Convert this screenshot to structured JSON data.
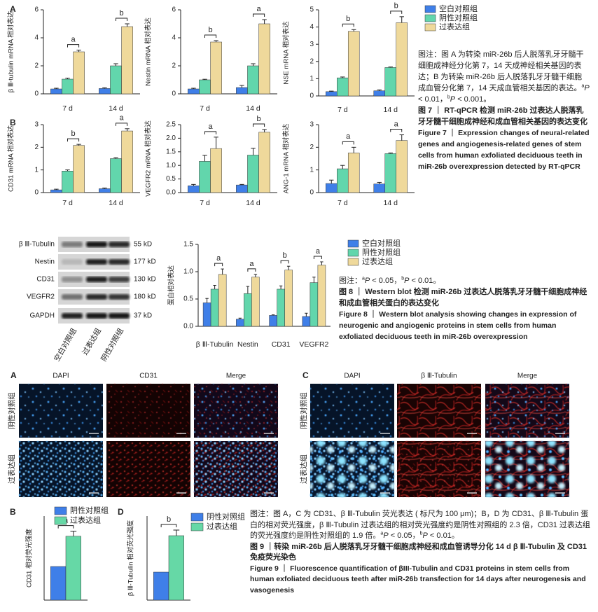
{
  "chart_data": [
    {
      "type": "bar",
      "ylabel": "β Ⅲ-tubulin mRNA 相对表达",
      "categories": [
        "7 d",
        "14 d"
      ],
      "series": [
        {
          "name": "空白对照组",
          "color": "#3f7fe8",
          "values": [
            0.35,
            0.38
          ],
          "errors": [
            0.05,
            0.05
          ]
        },
        {
          "name": "阴性对照组",
          "color": "#62d6ac",
          "values": [
            1.05,
            2.0
          ],
          "errors": [
            0.07,
            0.15
          ]
        },
        {
          "name": "过表达组",
          "color": "#efd99b",
          "values": [
            3.0,
            4.8
          ],
          "errors": [
            0.12,
            0.2
          ]
        }
      ],
      "ylim": [
        0,
        6
      ],
      "yticks": [
        0,
        2,
        4,
        6
      ],
      "annotations": [
        "a",
        "b"
      ]
    },
    {
      "type": "bar",
      "ylabel": "Nestin mRNA 相对表达",
      "categories": [
        "7 d",
        "14 d"
      ],
      "series": [
        {
          "color": "#3f7fe8",
          "values": [
            0.35,
            0.45
          ],
          "errors": [
            0.05,
            0.15
          ]
        },
        {
          "color": "#62d6ac",
          "values": [
            1.0,
            2.0
          ],
          "errors": [
            0.04,
            0.15
          ]
        },
        {
          "color": "#efd99b",
          "values": [
            3.7,
            5.0
          ],
          "errors": [
            0.1,
            0.3
          ]
        }
      ],
      "ylim": [
        0,
        6
      ],
      "yticks": [
        0,
        2,
        4,
        6
      ],
      "annotations": [
        "b",
        "a"
      ]
    },
    {
      "type": "bar",
      "ylabel": "NSE mRNA 相对表达",
      "categories": [
        "7 d",
        "14 d"
      ],
      "series": [
        {
          "color": "#3f7fe8",
          "values": [
            0.25,
            0.3
          ],
          "errors": [
            0.03,
            0.05
          ]
        },
        {
          "color": "#62d6ac",
          "values": [
            1.05,
            1.65
          ],
          "errors": [
            0.05,
            0.03
          ]
        },
        {
          "color": "#efd99b",
          "values": [
            3.75,
            4.25
          ],
          "errors": [
            0.1,
            0.35
          ]
        }
      ],
      "ylim": [
        0,
        5
      ],
      "yticks": [
        0,
        1,
        2,
        3,
        4,
        5
      ],
      "annotations": [
        "b",
        "b"
      ]
    },
    {
      "type": "bar",
      "ylabel": "CD31 mRNA 相对表达",
      "categories": [
        "7 d",
        "14 d"
      ],
      "series": [
        {
          "color": "#3f7fe8",
          "values": [
            0.12,
            0.17
          ],
          "errors": [
            0.03,
            0.03
          ]
        },
        {
          "color": "#62d6ac",
          "values": [
            0.95,
            1.5
          ],
          "errors": [
            0.05,
            0.04
          ]
        },
        {
          "color": "#efd99b",
          "values": [
            2.08,
            2.72
          ],
          "errors": [
            0.05,
            0.1
          ]
        }
      ],
      "ylim": [
        0,
        3
      ],
      "yticks": [
        0,
        1,
        2,
        3
      ],
      "annotations": [
        "b",
        "a"
      ]
    },
    {
      "type": "bar",
      "ylabel": "VEGFR2 mRNA 相对表达",
      "categories": [
        "7 d",
        "14 d"
      ],
      "series": [
        {
          "color": "#3f7fe8",
          "values": [
            0.25,
            0.28
          ],
          "errors": [
            0.05,
            0.02
          ]
        },
        {
          "color": "#62d6ac",
          "values": [
            1.15,
            1.38
          ],
          "errors": [
            0.22,
            0.25
          ]
        },
        {
          "color": "#efd99b",
          "values": [
            1.62,
            2.22
          ],
          "errors": [
            0.42,
            0.1
          ]
        }
      ],
      "ylim": [
        0,
        2.5
      ],
      "yticks": [
        {
          "value": 0,
          "label": "0.0"
        },
        0.5,
        {
          "value": 1,
          "label": "1.0"
        },
        1.5,
        {
          "value": 2,
          "label": "2.0"
        },
        2.5
      ],
      "annotations": [
        "a",
        "b"
      ]
    },
    {
      "type": "bar",
      "ylabel": "ANG-1 mRNA 相对表达",
      "categories": [
        "7 d",
        "14 d"
      ],
      "series": [
        {
          "color": "#3f7fe8",
          "values": [
            0.4,
            0.38
          ],
          "errors": [
            0.15,
            0.07
          ]
        },
        {
          "color": "#62d6ac",
          "values": [
            1.05,
            1.72
          ],
          "errors": [
            0.15,
            0.03
          ]
        },
        {
          "color": "#efd99b",
          "values": [
            1.75,
            2.3
          ],
          "errors": [
            0.25,
            0.25
          ]
        }
      ],
      "ylim": [
        0,
        3
      ],
      "yticks": [
        0,
        1,
        2,
        3
      ],
      "annotations": [
        "a",
        "a"
      ]
    },
    {
      "type": "bar",
      "ylabel": "蛋白相对表达",
      "categories": [
        "β Ⅲ-Tubulin",
        "Nestin",
        "CD31",
        "VEGFR2"
      ],
      "series": [
        {
          "name": "空白对照组",
          "color": "#3f7fe8",
          "values": [
            0.43,
            0.13,
            0.2,
            0.18
          ],
          "errors": [
            0.08,
            0.02,
            0.01,
            0.06
          ]
        },
        {
          "name": "阴性对照组",
          "color": "#62d6ac",
          "values": [
            0.68,
            0.6,
            0.68,
            0.8
          ],
          "errors": [
            0.07,
            0.13,
            0.06,
            0.1
          ]
        },
        {
          "name": "过表达组",
          "color": "#efd99b",
          "values": [
            0.95,
            0.9,
            1.03,
            1.12
          ],
          "errors": [
            0.1,
            0.05,
            0.07,
            0.06
          ]
        }
      ],
      "ylim": [
        0,
        1.5
      ],
      "yticks": [
        {
          "value": 0,
          "label": "0.0"
        },
        0.5,
        {
          "value": 1,
          "label": "1.0"
        },
        1.5
      ],
      "annotations": [
        "a",
        "a",
        "b",
        "a"
      ]
    },
    {
      "type": "bar",
      "ylabel": "CD31 相对荧光强度",
      "categories": [
        null
      ],
      "series": [
        {
          "name": "阴性对照组",
          "color": "#3f7fe8",
          "values": [
            1
          ]
        },
        {
          "name": "过表达组",
          "color": "#66d8a6",
          "values": [
            1.9
          ],
          "errors": [
            0.15
          ]
        }
      ],
      "ylim": [
        0,
        2.5
      ],
      "annotations": [
        "a"
      ]
    },
    {
      "type": "bar",
      "ylabel": "β Ⅲ-Tubulin 相对荧光强度",
      "categories": [
        null
      ],
      "series": [
        {
          "name": "阴性对照组",
          "color": "#3f7fe8",
          "values": [
            1
          ]
        },
        {
          "name": "过表达组",
          "color": "#66d8a6",
          "values": [
            2.3
          ],
          "errors": [
            0.2
          ]
        }
      ],
      "ylim": [
        0,
        3
      ],
      "annotations": [
        "b"
      ]
    }
  ],
  "fig7": {
    "panels": [
      "A",
      "B"
    ],
    "note": [
      "图注：图 A 为转染 miR-26b 后人脱落乳牙牙髓干细胞成神经分化第 7，14 天成神经相关基因的表达；B 为转染 miR-26b 后人脱落乳牙牙髓干细胞成血管分化第 7，14 天成血管相关基因的表达。",
      "a",
      "P",
      " < 0.01，",
      "b",
      "P",
      " < 0.001。"
    ],
    "title_zh": "图 7 ｜ RT-qPCR 检测 miR-26b 过表达人脱落乳牙牙髓干细胞成神经和成血管相关基因的表达变化",
    "title_en": "Figure 7 ｜ Expression changes of neural-related genes and angiogenesis-related genes of stem cells from human exfoliated deciduous teeth in miR-26b overexpression detected by RT-qPCR"
  },
  "blot": {
    "proteins": [
      "β Ⅲ-Tubulin",
      "Nestin",
      "CD31",
      "VEGFR2",
      "GAPDH"
    ],
    "sizes": [
      "55 kD",
      "177 kD",
      "130 kD",
      "180 kD",
      "37 kD"
    ],
    "groups": [
      "空白对照组",
      "过表达组",
      "阴性对照组"
    ]
  },
  "fig8": {
    "note": [
      "图注：",
      "a",
      "P",
      " < 0.05，",
      "b",
      "P",
      " < 0.01。"
    ],
    "title_zh": "图 8 ｜ Western blot 检测 miR-26b 过表达人脱落乳牙牙髓干细胞成神经和成血管相关蛋白的表达变化",
    "title_en": "Figure 8 ｜ Western blot analysis showing changes in expression of neurogenic and angiogenic proteins in stem cells from human exfoliated deciduous teeth in miR-26b overexpression"
  },
  "fluor": {
    "panels": [
      "A",
      "C"
    ],
    "a_headers": [
      "DAPI",
      "CD31",
      "Merge"
    ],
    "c_headers": [
      "DAPI",
      "β Ⅲ-Tubulin",
      "Merge"
    ],
    "rows": [
      "阴性对照组",
      "过表达组"
    ]
  },
  "fig9": {
    "panels": [
      "B",
      "D"
    ],
    "note": [
      "图注：图 A，C 为 CD31、β Ⅲ-Tubulin 荧光表达 ( 标尺为 100 μm)；B，D 为 CD31、β Ⅲ-Tubulin 蛋白的相对荧光强度，β Ⅲ-Tubulin 过表达组的相对荧光强度约是阴性对照组的 2.3 倍，CD31 过表达组的荧光强度约是阴性对照组的 1.9 倍。",
      "a",
      "P",
      " < 0.05，",
      "b",
      "P",
      " < 0.01。"
    ],
    "title_zh": "图 9 ｜转染 miR-26b 后人脱落乳牙牙髓干细胞成神经和成血管诱导分化 14 d β Ⅲ-Tubulin 及 CD31 免疫荧光染色",
    "title_en": "Figure 9 ｜ Fluorescence quantification of βIII-Tubulin and CD31 proteins in stem cells from human exfoliated deciduous teeth after miR-26b transfection for 14 days after neurogenesis and vasogenesis"
  }
}
